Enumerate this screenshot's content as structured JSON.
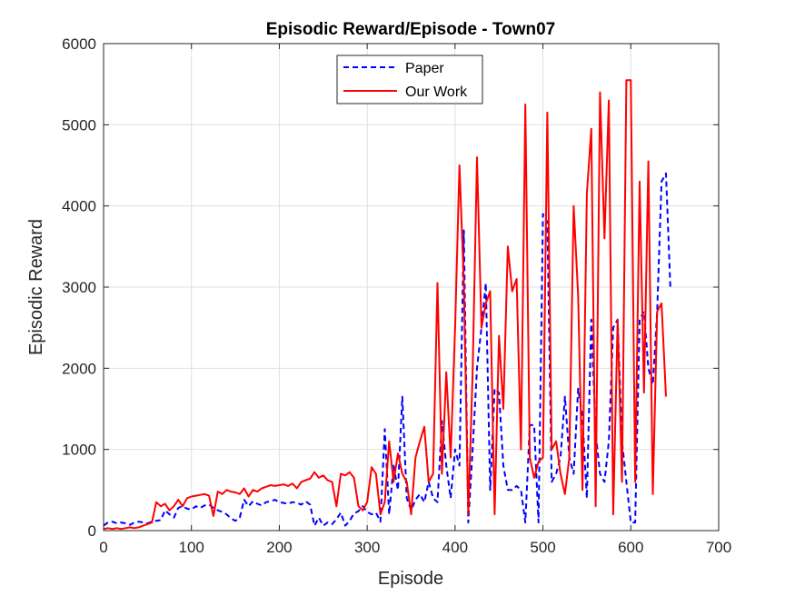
{
  "chart_data": {
    "type": "line",
    "title": "Episodic Reward/Episode - Town07",
    "xlabel": "Episode",
    "ylabel": "Episodic Reward",
    "xlim": [
      0,
      700
    ],
    "ylim": [
      0,
      6000
    ],
    "xticks": [
      0,
      100,
      200,
      300,
      400,
      500,
      600,
      700
    ],
    "yticks": [
      0,
      1000,
      2000,
      3000,
      4000,
      5000,
      6000
    ],
    "grid": true,
    "legend_position": "top-center",
    "series": [
      {
        "name": "Paper",
        "color": "#0000ff",
        "style": "dashed",
        "points": [
          [
            0,
            60
          ],
          [
            5,
            100
          ],
          [
            10,
            110
          ],
          [
            15,
            90
          ],
          [
            20,
            100
          ],
          [
            25,
            90
          ],
          [
            30,
            70
          ],
          [
            35,
            100
          ],
          [
            40,
            110
          ],
          [
            45,
            100
          ],
          [
            50,
            90
          ],
          [
            55,
            110
          ],
          [
            60,
            120
          ],
          [
            65,
            130
          ],
          [
            70,
            250
          ],
          [
            75,
            200
          ],
          [
            80,
            160
          ],
          [
            85,
            280
          ],
          [
            90,
            300
          ],
          [
            95,
            270
          ],
          [
            100,
            260
          ],
          [
            105,
            300
          ],
          [
            110,
            280
          ],
          [
            115,
            310
          ],
          [
            120,
            320
          ],
          [
            125,
            280
          ],
          [
            130,
            250
          ],
          [
            135,
            230
          ],
          [
            140,
            200
          ],
          [
            145,
            150
          ],
          [
            150,
            120
          ],
          [
            155,
            160
          ],
          [
            160,
            380
          ],
          [
            165,
            300
          ],
          [
            170,
            360
          ],
          [
            175,
            330
          ],
          [
            180,
            310
          ],
          [
            185,
            350
          ],
          [
            190,
            360
          ],
          [
            195,
            380
          ],
          [
            200,
            350
          ],
          [
            205,
            340
          ],
          [
            210,
            330
          ],
          [
            215,
            350
          ],
          [
            220,
            340
          ],
          [
            225,
            320
          ],
          [
            230,
            360
          ],
          [
            235,
            320
          ],
          [
            240,
            60
          ],
          [
            245,
            160
          ],
          [
            250,
            60
          ],
          [
            255,
            100
          ],
          [
            260,
            80
          ],
          [
            265,
            140
          ],
          [
            270,
            220
          ],
          [
            275,
            60
          ],
          [
            280,
            120
          ],
          [
            285,
            210
          ],
          [
            290,
            240
          ],
          [
            295,
            300
          ],
          [
            300,
            230
          ],
          [
            305,
            200
          ],
          [
            310,
            220
          ],
          [
            315,
            110
          ],
          [
            320,
            1250
          ],
          [
            325,
            200
          ],
          [
            330,
            800
          ],
          [
            335,
            500
          ],
          [
            340,
            1650
          ],
          [
            345,
            400
          ],
          [
            350,
            250
          ],
          [
            355,
            380
          ],
          [
            360,
            450
          ],
          [
            365,
            350
          ],
          [
            370,
            600
          ],
          [
            375,
            400
          ],
          [
            380,
            350
          ],
          [
            385,
            1350
          ],
          [
            390,
            800
          ],
          [
            395,
            400
          ],
          [
            400,
            1000
          ],
          [
            405,
            800
          ],
          [
            410,
            3700
          ],
          [
            415,
            100
          ],
          [
            420,
            1000
          ],
          [
            425,
            2000
          ],
          [
            430,
            2500
          ],
          [
            435,
            3050
          ],
          [
            440,
            500
          ],
          [
            445,
            1750
          ],
          [
            450,
            1700
          ],
          [
            455,
            800
          ],
          [
            460,
            500
          ],
          [
            465,
            500
          ],
          [
            470,
            550
          ],
          [
            475,
            500
          ],
          [
            480,
            100
          ],
          [
            485,
            1300
          ],
          [
            490,
            1300
          ],
          [
            495,
            100
          ],
          [
            500,
            3900
          ],
          [
            505,
            3800
          ],
          [
            510,
            600
          ],
          [
            515,
            700
          ],
          [
            520,
            900
          ],
          [
            525,
            1650
          ],
          [
            530,
            900
          ],
          [
            535,
            700
          ],
          [
            540,
            1750
          ],
          [
            545,
            1400
          ],
          [
            550,
            400
          ],
          [
            555,
            2600
          ],
          [
            560,
            1200
          ],
          [
            565,
            700
          ],
          [
            570,
            600
          ],
          [
            575,
            1100
          ],
          [
            580,
            2500
          ],
          [
            585,
            2600
          ],
          [
            590,
            1100
          ],
          [
            595,
            600
          ],
          [
            600,
            100
          ],
          [
            605,
            100
          ],
          [
            610,
            2600
          ],
          [
            615,
            2700
          ],
          [
            620,
            2000
          ],
          [
            625,
            1800
          ],
          [
            630,
            2700
          ],
          [
            635,
            4300
          ],
          [
            640,
            4400
          ],
          [
            645,
            3000
          ]
        ]
      },
      {
        "name": "Our Work",
        "color": "#ff0000",
        "style": "solid",
        "points": [
          [
            0,
            20
          ],
          [
            5,
            30
          ],
          [
            10,
            20
          ],
          [
            15,
            30
          ],
          [
            20,
            20
          ],
          [
            25,
            30
          ],
          [
            30,
            40
          ],
          [
            35,
            30
          ],
          [
            40,
            40
          ],
          [
            45,
            60
          ],
          [
            50,
            80
          ],
          [
            55,
            100
          ],
          [
            60,
            350
          ],
          [
            65,
            300
          ],
          [
            70,
            330
          ],
          [
            75,
            250
          ],
          [
            80,
            300
          ],
          [
            85,
            380
          ],
          [
            90,
            300
          ],
          [
            95,
            400
          ],
          [
            100,
            420
          ],
          [
            105,
            430
          ],
          [
            110,
            440
          ],
          [
            115,
            450
          ],
          [
            120,
            430
          ],
          [
            125,
            180
          ],
          [
            130,
            480
          ],
          [
            135,
            450
          ],
          [
            140,
            500
          ],
          [
            145,
            480
          ],
          [
            150,
            470
          ],
          [
            155,
            450
          ],
          [
            160,
            520
          ],
          [
            165,
            420
          ],
          [
            170,
            500
          ],
          [
            175,
            480
          ],
          [
            180,
            520
          ],
          [
            185,
            540
          ],
          [
            190,
            560
          ],
          [
            195,
            550
          ],
          [
            200,
            560
          ],
          [
            205,
            570
          ],
          [
            210,
            550
          ],
          [
            215,
            580
          ],
          [
            220,
            520
          ],
          [
            225,
            600
          ],
          [
            230,
            620
          ],
          [
            235,
            640
          ],
          [
            240,
            720
          ],
          [
            245,
            650
          ],
          [
            250,
            680
          ],
          [
            255,
            620
          ],
          [
            260,
            600
          ],
          [
            265,
            300
          ],
          [
            270,
            700
          ],
          [
            275,
            680
          ],
          [
            280,
            720
          ],
          [
            285,
            650
          ],
          [
            290,
            300
          ],
          [
            295,
            250
          ],
          [
            300,
            350
          ],
          [
            305,
            780
          ],
          [
            310,
            700
          ],
          [
            315,
            200
          ],
          [
            320,
            350
          ],
          [
            325,
            1100
          ],
          [
            330,
            600
          ],
          [
            335,
            950
          ],
          [
            340,
            700
          ],
          [
            345,
            600
          ],
          [
            350,
            200
          ],
          [
            355,
            900
          ],
          [
            360,
            1100
          ],
          [
            365,
            1280
          ],
          [
            370,
            600
          ],
          [
            375,
            700
          ],
          [
            380,
            3050
          ],
          [
            385,
            700
          ],
          [
            390,
            1950
          ],
          [
            395,
            900
          ],
          [
            400,
            2500
          ],
          [
            405,
            4500
          ],
          [
            410,
            3050
          ],
          [
            415,
            200
          ],
          [
            420,
            1950
          ],
          [
            425,
            4600
          ],
          [
            430,
            2500
          ],
          [
            435,
            2800
          ],
          [
            440,
            2950
          ],
          [
            445,
            200
          ],
          [
            450,
            2400
          ],
          [
            455,
            1500
          ],
          [
            460,
            3500
          ],
          [
            465,
            2950
          ],
          [
            470,
            3100
          ],
          [
            475,
            1000
          ],
          [
            480,
            5250
          ],
          [
            485,
            900
          ],
          [
            490,
            650
          ],
          [
            495,
            850
          ],
          [
            500,
            900
          ],
          [
            505,
            5150
          ],
          [
            510,
            1000
          ],
          [
            515,
            1100
          ],
          [
            520,
            700
          ],
          [
            525,
            450
          ],
          [
            530,
            900
          ],
          [
            535,
            4000
          ],
          [
            540,
            2900
          ],
          [
            545,
            500
          ],
          [
            550,
            4150
          ],
          [
            555,
            4950
          ],
          [
            560,
            300
          ],
          [
            565,
            5400
          ],
          [
            570,
            3600
          ],
          [
            575,
            5300
          ],
          [
            580,
            200
          ],
          [
            585,
            2600
          ],
          [
            590,
            600
          ],
          [
            595,
            5550
          ],
          [
            600,
            5550
          ],
          [
            605,
            600
          ],
          [
            610,
            4300
          ],
          [
            615,
            1700
          ],
          [
            620,
            4550
          ],
          [
            625,
            450
          ],
          [
            630,
            2700
          ],
          [
            635,
            2800
          ],
          [
            640,
            1650
          ]
        ]
      }
    ]
  }
}
